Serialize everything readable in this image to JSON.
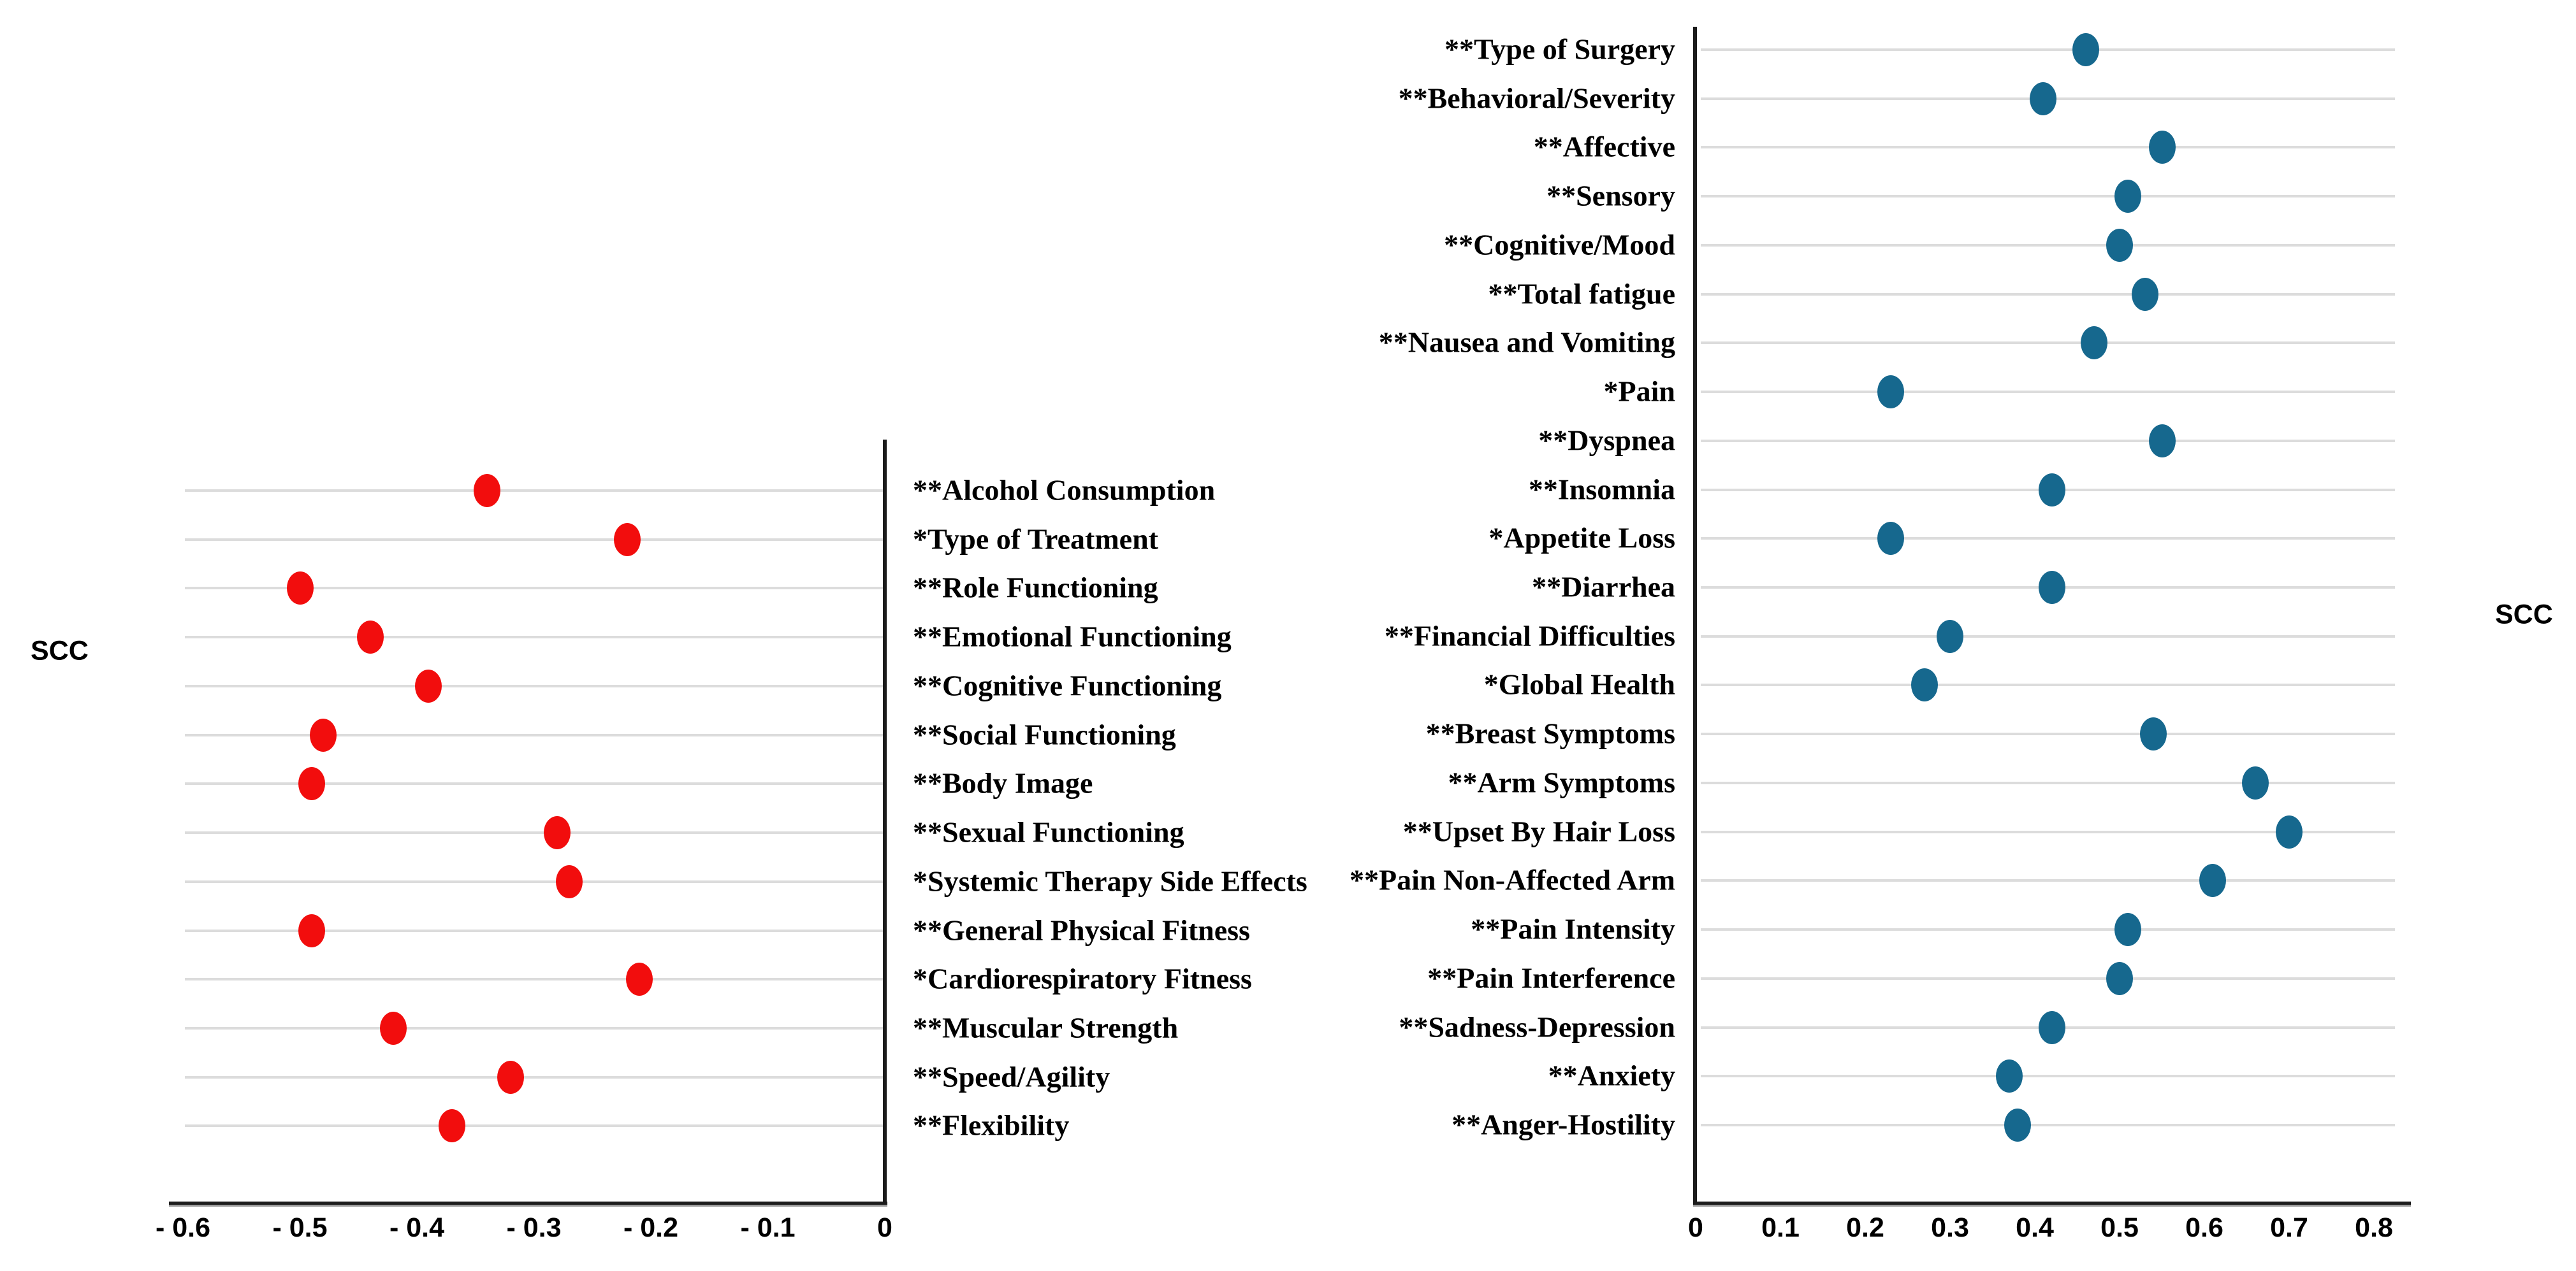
{
  "figure": {
    "background": "#ffffff",
    "left_axis_title": "SCC",
    "right_axis_title": "SCC"
  },
  "chart_data": [
    {
      "type": "scatter",
      "title": "",
      "side_label": "SCC",
      "legend_position": "none",
      "grid": true,
      "dot_color": "#f20d0d",
      "gridline_color": "#dcdcdc",
      "xlim": [
        -0.6,
        0
      ],
      "x_ticks": [
        {
          "label": "- 0.6",
          "value": -0.6
        },
        {
          "label": "- 0.5",
          "value": -0.5
        },
        {
          "label": "- 0.4",
          "value": -0.4
        },
        {
          "label": "- 0.3",
          "value": -0.3
        },
        {
          "label": "- 0.2",
          "value": -0.2
        },
        {
          "label": "- 0.1",
          "value": -0.1
        },
        {
          "label": "0",
          "value": 0
        }
      ],
      "categories": [
        "**Alcohol Consumption",
        "*Type of Treatment",
        "**Role Functioning",
        "**Emotional Functioning",
        "**Cognitive Functioning",
        "**Social Functioning",
        "**Body Image",
        "**Sexual Functioning",
        "*Systemic Therapy Side Effects",
        "**General Physical Fitness",
        "*Cardiorespiratory Fitness",
        "**Muscular Strength",
        "**Speed/Agility",
        "**Flexibility"
      ],
      "values": [
        -0.34,
        -0.22,
        -0.5,
        -0.44,
        -0.39,
        -0.48,
        -0.49,
        -0.28,
        -0.27,
        -0.49,
        -0.21,
        -0.42,
        -0.32,
        -0.37
      ]
    },
    {
      "type": "scatter",
      "title": "",
      "side_label": "SCC",
      "legend_position": "none",
      "grid": true,
      "dot_color": "#16688e",
      "gridline_color": "#dcdcdc",
      "xlim": [
        0,
        0.8
      ],
      "x_ticks": [
        {
          "label": "0",
          "value": 0
        },
        {
          "label": "0.1",
          "value": 0.1
        },
        {
          "label": "0.2",
          "value": 0.2
        },
        {
          "label": "0.3",
          "value": 0.3
        },
        {
          "label": "0.4",
          "value": 0.4
        },
        {
          "label": "0.5",
          "value": 0.5
        },
        {
          "label": "0.6",
          "value": 0.6
        },
        {
          "label": "0.7",
          "value": 0.7
        },
        {
          "label": "0.8",
          "value": 0.8
        }
      ],
      "categories": [
        "**Type of Surgery",
        "**Behavioral/Severity",
        "**Affective",
        "**Sensory",
        "**Cognitive/Mood",
        "**Total fatigue",
        "**Nausea and Vomiting",
        "*Pain",
        "**Dyspnea",
        "**Insomnia",
        "*Appetite Loss",
        "**Diarrhea",
        "**Financial Difficulties",
        "*Global Health",
        "**Breast Symptoms",
        "**Arm Symptoms",
        "**Upset By Hair Loss",
        "**Pain Non-Affected Arm",
        "**Pain Intensity",
        "**Pain Interference",
        "**Sadness-Depression",
        "**Anxiety",
        "**Anger-Hostility"
      ],
      "values": [
        0.46,
        0.41,
        0.55,
        0.51,
        0.5,
        0.53,
        0.47,
        0.23,
        0.55,
        0.42,
        0.23,
        0.42,
        0.3,
        0.27,
        0.54,
        0.66,
        0.7,
        0.61,
        0.51,
        0.5,
        0.42,
        0.37,
        0.38
      ]
    }
  ]
}
